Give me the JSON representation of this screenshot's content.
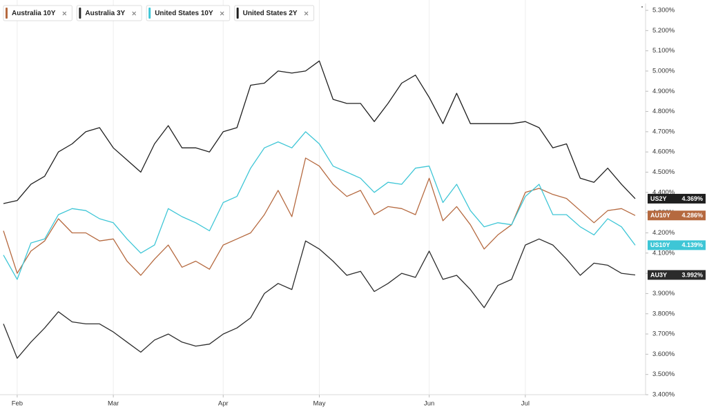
{
  "chart_data": {
    "type": "line",
    "categories": [
      null,
      "Feb",
      null,
      null,
      null,
      null,
      null,
      null,
      "Mar",
      null,
      null,
      null,
      null,
      null,
      null,
      null,
      "Apr",
      null,
      null,
      null,
      null,
      null,
      null,
      "May",
      null,
      null,
      null,
      null,
      null,
      null,
      null,
      "Jun",
      null,
      null,
      null,
      null,
      null,
      null,
      "Jul",
      null,
      null,
      null,
      null,
      null,
      null,
      null,
      null
    ],
    "ylim": [
      3.4,
      5.3
    ],
    "yticks": [
      {
        "value": 3.4,
        "label": "3.400%"
      },
      {
        "value": 3.5,
        "label": "3.500%"
      },
      {
        "value": 3.6,
        "label": "3.600%"
      },
      {
        "value": 3.7,
        "label": "3.700%"
      },
      {
        "value": 3.8,
        "label": "3.800%"
      },
      {
        "value": 3.9,
        "label": "3.900%"
      },
      {
        "value": 4.0,
        "label": "4.000%"
      },
      {
        "value": 4.1,
        "label": "4.100%"
      },
      {
        "value": 4.2,
        "label": "4.200%"
      },
      {
        "value": 4.3,
        "label": "4.300%"
      },
      {
        "value": 4.4,
        "label": "4.400%"
      },
      {
        "value": 4.5,
        "label": "4.500%"
      },
      {
        "value": 4.6,
        "label": "4.600%"
      },
      {
        "value": 4.7,
        "label": "4.700%"
      },
      {
        "value": 4.8,
        "label": "4.800%"
      },
      {
        "value": 4.9,
        "label": "4.900%"
      },
      {
        "value": 5.0,
        "label": "5.000%"
      },
      {
        "value": 5.1,
        "label": "5.100%"
      },
      {
        "value": 5.2,
        "label": "5.200%"
      },
      {
        "value": 5.3,
        "label": "5.300%"
      }
    ],
    "grid": true,
    "series": [
      {
        "name": "Australia 10Y",
        "tag": "AU10Y",
        "color": "#b5693f",
        "values": [
          4.21,
          4.0,
          4.11,
          4.16,
          4.27,
          4.2,
          4.2,
          4.16,
          4.17,
          4.06,
          3.99,
          4.07,
          4.14,
          4.03,
          4.06,
          4.02,
          4.14,
          4.17,
          4.2,
          4.29,
          4.41,
          4.28,
          4.57,
          4.53,
          4.44,
          4.38,
          4.41,
          4.29,
          4.33,
          4.32,
          4.29,
          4.47,
          4.26,
          4.33,
          4.24,
          4.12,
          4.19,
          4.24,
          4.4,
          4.42,
          4.39,
          4.37,
          4.31,
          4.25,
          4.31,
          4.32,
          4.286
        ],
        "value_labels": [
          null,
          null,
          null,
          null,
          null,
          null,
          null,
          null,
          null,
          null,
          null,
          null,
          null,
          null,
          null,
          null,
          null,
          null,
          null,
          null,
          null,
          null,
          null,
          null,
          null,
          null,
          null,
          null,
          null,
          null,
          null,
          null,
          null,
          null,
          null,
          null,
          null,
          null,
          null,
          null,
          null,
          null,
          null,
          null,
          null,
          null,
          "4.286%"
        ]
      },
      {
        "name": "Australia 3Y",
        "tag": "AU3Y",
        "color": "#2b2b2b",
        "values": [
          3.75,
          3.58,
          3.66,
          3.73,
          3.81,
          3.76,
          3.75,
          3.75,
          3.71,
          3.66,
          3.61,
          3.67,
          3.7,
          3.66,
          3.64,
          3.65,
          3.7,
          3.73,
          3.78,
          3.9,
          3.95,
          3.92,
          4.16,
          4.12,
          4.06,
          3.99,
          4.01,
          3.91,
          3.95,
          4.0,
          3.98,
          4.11,
          3.97,
          3.99,
          3.92,
          3.83,
          3.94,
          3.97,
          4.14,
          4.17,
          4.14,
          4.07,
          3.99,
          4.05,
          4.04,
          4.0,
          3.992
        ],
        "value_labels": [
          null,
          null,
          null,
          null,
          null,
          null,
          null,
          null,
          null,
          null,
          null,
          null,
          null,
          null,
          null,
          null,
          null,
          null,
          null,
          null,
          null,
          null,
          null,
          null,
          null,
          null,
          null,
          null,
          null,
          null,
          null,
          null,
          null,
          null,
          null,
          null,
          null,
          null,
          null,
          null,
          null,
          null,
          null,
          null,
          null,
          null,
          "3.992%"
        ]
      },
      {
        "name": "United States 10Y",
        "tag": "US10Y",
        "color": "#3ec6d6",
        "values": [
          4.09,
          3.97,
          4.15,
          4.17,
          4.29,
          4.32,
          4.31,
          4.27,
          4.25,
          4.17,
          4.1,
          4.14,
          4.32,
          4.28,
          4.25,
          4.21,
          4.35,
          4.38,
          4.52,
          4.62,
          4.65,
          4.62,
          4.7,
          4.64,
          4.53,
          4.5,
          4.47,
          4.4,
          4.45,
          4.44,
          4.52,
          4.53,
          4.35,
          4.44,
          4.31,
          4.23,
          4.25,
          4.24,
          4.38,
          4.44,
          4.29,
          4.29,
          4.23,
          4.19,
          4.27,
          4.23,
          4.139
        ],
        "value_labels": [
          null,
          null,
          null,
          null,
          null,
          null,
          null,
          null,
          null,
          null,
          null,
          null,
          null,
          null,
          null,
          null,
          null,
          null,
          null,
          null,
          null,
          null,
          null,
          null,
          null,
          null,
          null,
          null,
          null,
          null,
          null,
          null,
          null,
          null,
          null,
          null,
          null,
          null,
          null,
          null,
          null,
          null,
          null,
          null,
          null,
          null,
          "4.139%"
        ]
      },
      {
        "name": "United States 2Y",
        "tag": "US2Y",
        "color": "#1f1f1f",
        "values": [
          4.345,
          4.36,
          4.44,
          4.48,
          4.6,
          4.64,
          4.7,
          4.72,
          4.62,
          4.56,
          4.5,
          4.64,
          4.73,
          4.62,
          4.62,
          4.6,
          4.7,
          4.72,
          4.93,
          4.94,
          5.0,
          4.99,
          5.0,
          5.05,
          4.86,
          4.84,
          4.84,
          4.75,
          4.84,
          4.94,
          4.98,
          4.87,
          4.74,
          4.89,
          4.74,
          4.74,
          4.74,
          4.74,
          4.75,
          4.72,
          4.62,
          4.64,
          4.47,
          4.45,
          4.52,
          4.44,
          4.369
        ],
        "value_labels": [
          null,
          null,
          null,
          null,
          null,
          null,
          null,
          null,
          null,
          null,
          null,
          null,
          null,
          null,
          null,
          null,
          null,
          null,
          null,
          null,
          null,
          null,
          null,
          null,
          null,
          null,
          null,
          null,
          null,
          null,
          null,
          null,
          null,
          null,
          null,
          null,
          null,
          null,
          null,
          null,
          null,
          null,
          null,
          null,
          null,
          null,
          "4.369%"
        ]
      }
    ]
  }
}
